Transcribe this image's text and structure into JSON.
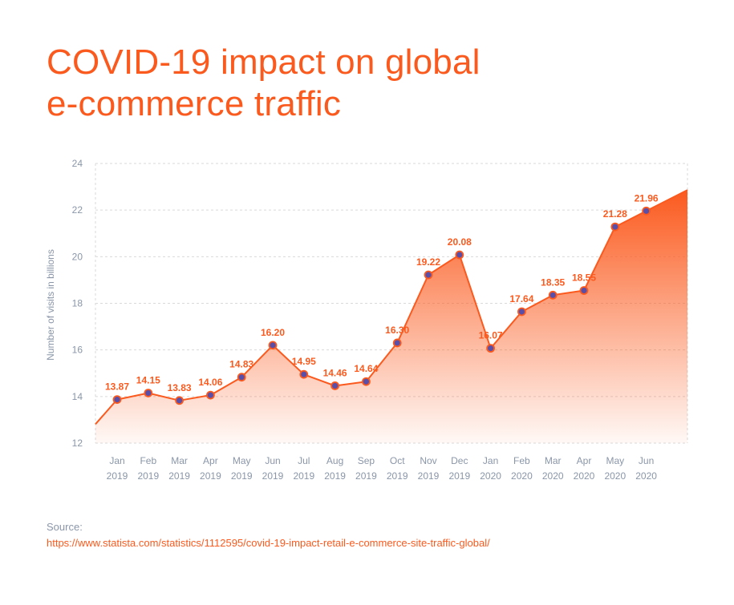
{
  "header": {
    "title_line1": "COVID-19 impact on global",
    "title_line2": "e-commerce traffic"
  },
  "source": {
    "label": "Source:",
    "url": "https://www.statista.com/statistics/1112595/covid-19-impact-retail-e-commerce-site-traffic-global/"
  },
  "colors": {
    "accent": "#fb5a1e",
    "marker_fill": "#5a4fa8",
    "axis_text": "#8a96a8",
    "grid": "#d9d9d9"
  },
  "chart_data": {
    "type": "area",
    "categories": [
      {
        "month": "Jan",
        "year": "2019"
      },
      {
        "month": "Feb",
        "year": "2019"
      },
      {
        "month": "Mar",
        "year": "2019"
      },
      {
        "month": "Apr",
        "year": "2019"
      },
      {
        "month": "May",
        "year": "2019"
      },
      {
        "month": "Jun",
        "year": "2019"
      },
      {
        "month": "Jul",
        "year": "2019"
      },
      {
        "month": "Aug",
        "year": "2019"
      },
      {
        "month": "Sep",
        "year": "2019"
      },
      {
        "month": "Oct",
        "year": "2019"
      },
      {
        "month": "Nov",
        "year": "2019"
      },
      {
        "month": "Dec",
        "year": "2019"
      },
      {
        "month": "Jan",
        "year": "2020"
      },
      {
        "month": "Feb",
        "year": "2020"
      },
      {
        "month": "Mar",
        "year": "2020"
      },
      {
        "month": "Apr",
        "year": "2020"
      },
      {
        "month": "May",
        "year": "2020"
      },
      {
        "month": "Jun",
        "year": "2020"
      }
    ],
    "values": [
      13.87,
      14.15,
      13.83,
      14.06,
      14.83,
      16.2,
      14.95,
      14.46,
      14.64,
      16.3,
      19.22,
      20.08,
      16.07,
      17.64,
      18.35,
      18.55,
      21.28,
      21.96
    ],
    "data_labels": [
      "13.87",
      "14.15",
      "13.83",
      "14.06",
      "14.83",
      "16.20",
      "14.95",
      "14.46",
      "14.64",
      "16.30",
      "19.22",
      "20.08",
      "16.07",
      "17.64",
      "18.35",
      "18.55",
      "21.28",
      "21.96"
    ],
    "ylabel": "Number of visits in billions",
    "ylim": [
      12,
      24
    ],
    "yticks": [
      12,
      14,
      16,
      18,
      20,
      22,
      24
    ],
    "grid": true,
    "legend": false
  }
}
